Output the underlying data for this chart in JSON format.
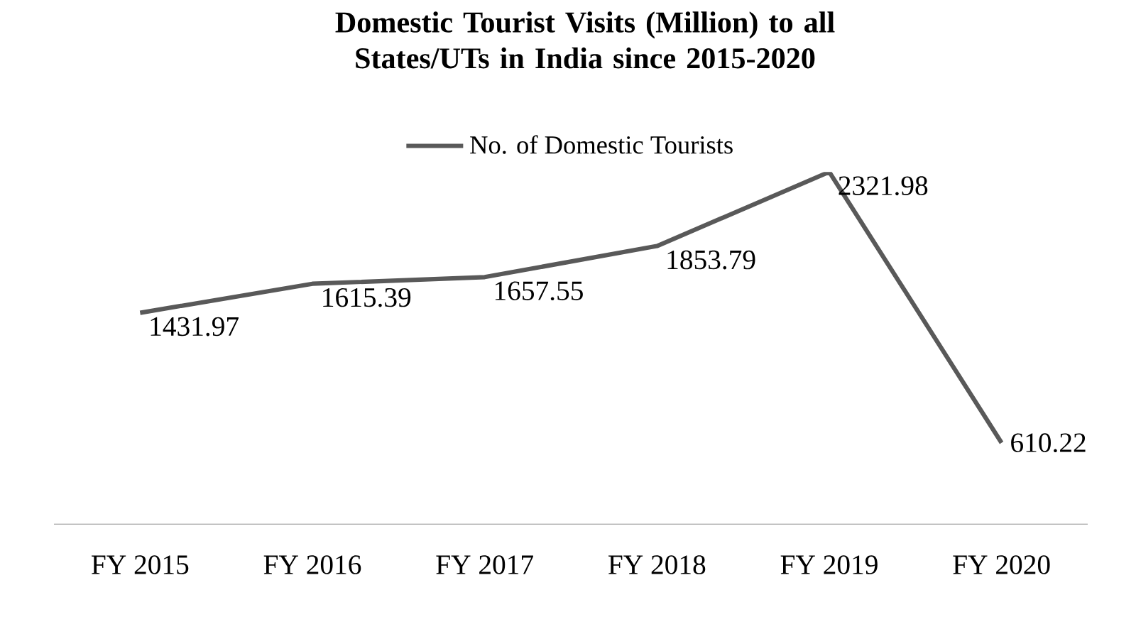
{
  "chart_data": {
    "type": "line",
    "title": "Domestic Tourist Visits (Million) to all States/UTs in India since 2015-2020",
    "categories": [
      "FY 2015",
      "FY 2016",
      "FY 2017",
      "FY 2018",
      "FY 2019",
      "FY 2020"
    ],
    "series": [
      {
        "name": "No. of Domestic Tourists",
        "color": "#595959",
        "values": [
          1431.97,
          1615.39,
          1657.55,
          1853.79,
          2321.98,
          610.22
        ]
      }
    ],
    "data_labels": true,
    "legend": "top",
    "grid": false,
    "marker": "none",
    "line_style": "solid",
    "tick_labels": "x"
  }
}
